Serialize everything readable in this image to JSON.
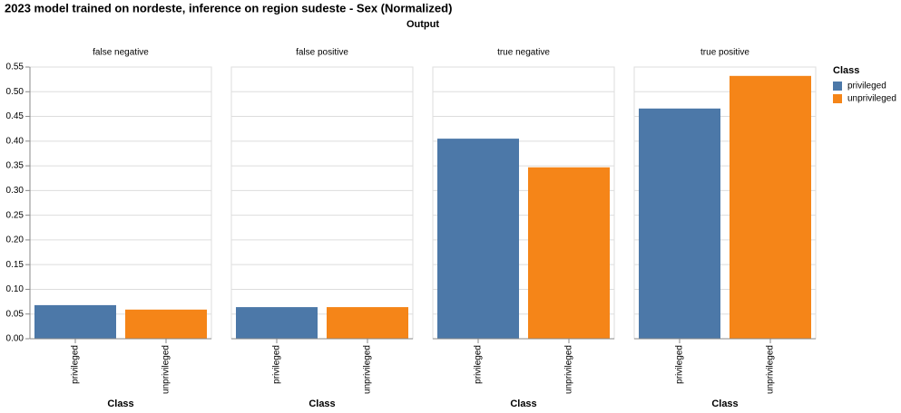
{
  "chart_data": {
    "type": "bar",
    "title": "2023 model trained on nordeste, inference on region sudeste - Sex (Normalized)",
    "facet_label": "Output",
    "x_label": "Class",
    "legend_title": "Class",
    "legend_position": "right",
    "categories": [
      "privileged",
      "unprivileged"
    ],
    "colors": [
      "#4c78a8",
      "#f58518"
    ],
    "facets": [
      {
        "title": "false negative",
        "values": [
          0.068,
          0.059
        ]
      },
      {
        "title": "false positive",
        "values": [
          0.064,
          0.064
        ]
      },
      {
        "title": "true negative",
        "values": [
          0.405,
          0.347
        ]
      },
      {
        "title": "true positive",
        "values": [
          0.466,
          0.532
        ]
      }
    ],
    "ylim": [
      0,
      0.55
    ],
    "yticks": [
      {
        "value": 0,
        "label": "0.00"
      },
      {
        "value": 0.05,
        "label": "0.05"
      },
      {
        "value": 0.1,
        "label": "0.10"
      },
      {
        "value": 0.15,
        "label": "0.15"
      },
      {
        "value": 0.2,
        "label": "0.20"
      },
      {
        "value": 0.25,
        "label": "0.25"
      },
      {
        "value": 0.3,
        "label": "0.30"
      },
      {
        "value": 0.35,
        "label": "0.35"
      },
      {
        "value": 0.4,
        "label": "0.40"
      },
      {
        "value": 0.45,
        "label": "0.45"
      },
      {
        "value": 0.5,
        "label": "0.50"
      },
      {
        "value": 0.55,
        "label": "0.55"
      }
    ],
    "grid": true
  }
}
